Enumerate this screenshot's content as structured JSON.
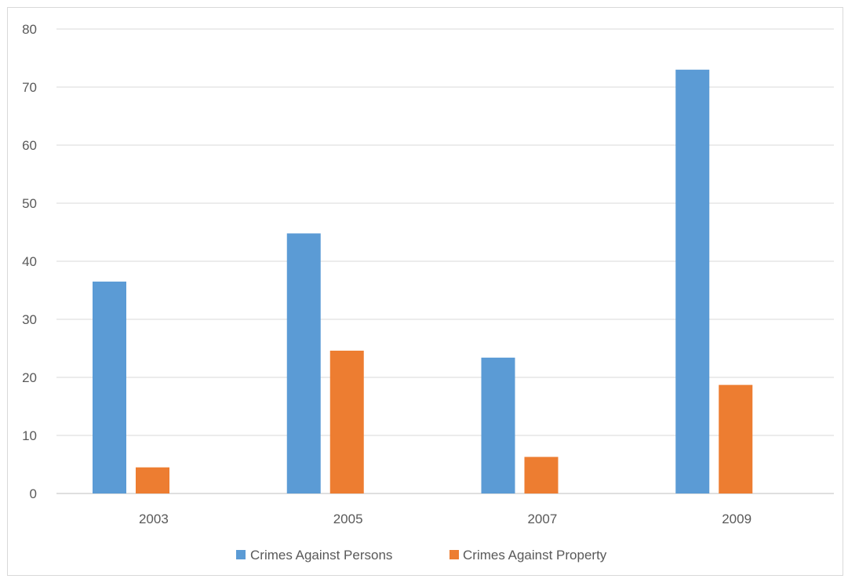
{
  "chart_data": {
    "type": "bar",
    "categories": [
      "2003",
      "2005",
      "2007",
      "2009"
    ],
    "series": [
      {
        "name": "Crimes Against Persons",
        "color": "#5b9bd5",
        "values": [
          36.5,
          44.8,
          23.4,
          73.0
        ]
      },
      {
        "name": "Crimes Against Property",
        "color": "#ed7d31",
        "values": [
          4.5,
          24.6,
          6.3,
          18.7
        ]
      }
    ],
    "y_ticks": [
      "0",
      "10",
      "20",
      "30",
      "40",
      "50",
      "60",
      "70",
      "80"
    ],
    "ylim": [
      0,
      80
    ],
    "grid": true,
    "legend_position": "bottom"
  }
}
